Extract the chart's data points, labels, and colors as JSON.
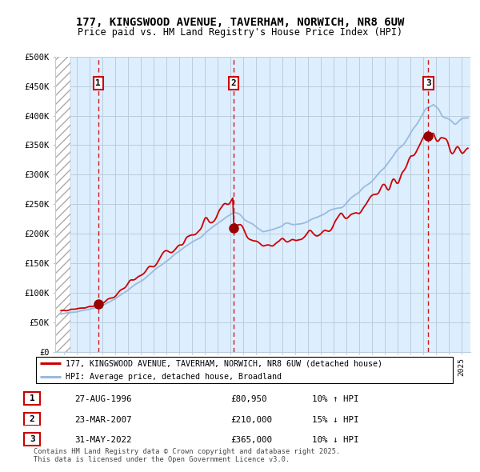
{
  "title": "177, KINGSWOOD AVENUE, TAVERHAM, NORWICH, NR8 6UW",
  "subtitle": "Price paid vs. HM Land Registry's House Price Index (HPI)",
  "ylabel_ticks": [
    "£0",
    "£50K",
    "£100K",
    "£150K",
    "£200K",
    "£250K",
    "£300K",
    "£350K",
    "£400K",
    "£450K",
    "£500K"
  ],
  "ytick_values": [
    0,
    50000,
    100000,
    150000,
    200000,
    250000,
    300000,
    350000,
    400000,
    450000,
    500000
  ],
  "xlim_start": 1993.3,
  "xlim_end": 2025.7,
  "ylim_min": 0,
  "ylim_max": 500000,
  "sale_dates": [
    1996.65,
    2007.22,
    2022.42
  ],
  "sale_prices": [
    80950,
    210000,
    365000
  ],
  "sale_labels": [
    "1",
    "2",
    "3"
  ],
  "sale_info": [
    {
      "label": "1",
      "date": "27-AUG-1996",
      "price": "£80,950",
      "hpi": "10% ↑ HPI"
    },
    {
      "label": "2",
      "date": "23-MAR-2007",
      "price": "£210,000",
      "hpi": "15% ↓ HPI"
    },
    {
      "label": "3",
      "date": "31-MAY-2022",
      "price": "£365,000",
      "hpi": "10% ↓ HPI"
    }
  ],
  "legend_line1": "177, KINGSWOOD AVENUE, TAVERHAM, NORWICH, NR8 6UW (detached house)",
  "legend_line2": "HPI: Average price, detached house, Broadland",
  "footer": "Contains HM Land Registry data © Crown copyright and database right 2025.\nThis data is licensed under the Open Government Licence v3.0.",
  "red_line_color": "#cc0000",
  "blue_line_color": "#99bbdd",
  "chart_bg_color": "#ddeeff",
  "grid_color": "#bbccdd",
  "sale_marker_color": "#990000",
  "dashed_line_color": "#cc0000",
  "hatch_end_year": 1994.5
}
